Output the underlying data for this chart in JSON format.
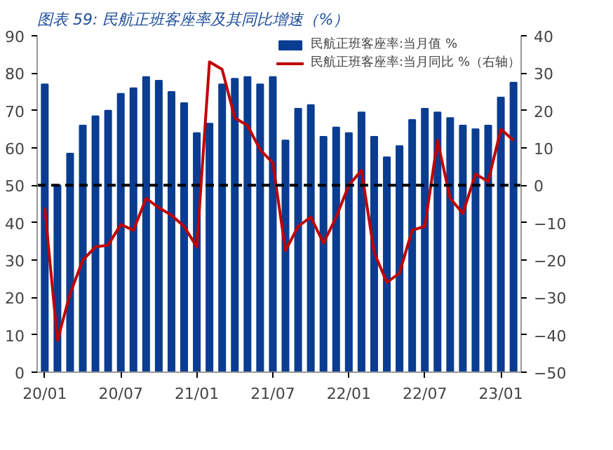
{
  "chart_data": {
    "type": "bar",
    "title": "图表 59: 民航正班客座率及其同比增速（%）",
    "categories": [
      "20/01",
      null,
      null,
      null,
      null,
      null,
      "20/07",
      null,
      null,
      null,
      null,
      null,
      "21/01",
      null,
      null,
      null,
      null,
      null,
      "21/07",
      null,
      null,
      null,
      null,
      null,
      "22/01",
      null,
      null,
      null,
      null,
      null,
      "22/07",
      null,
      null,
      null,
      null,
      null,
      "23/01",
      null
    ],
    "series": [
      {
        "name": "民航正班客座率:当月值 %",
        "color": "#0a3d91",
        "values": [
          77,
          50,
          58.5,
          66,
          68.5,
          70,
          74.5,
          76,
          79,
          78,
          75,
          72,
          64,
          66.5,
          77,
          78.5,
          79,
          77,
          79,
          62,
          70.5,
          71.5,
          63,
          65.5,
          64,
          69.5,
          63,
          57.5,
          60.5,
          67.5,
          70.5,
          69.5,
          68,
          66,
          65,
          66,
          73.5,
          77.5
        ]
      },
      {
        "name": "民航正班客座率:当月同比 %（右轴）",
        "color": "#c00000",
        "type": "line",
        "axis": "y2",
        "values": [
          -6,
          -41.5,
          -29,
          -20,
          -16.5,
          -16,
          -10.5,
          -12,
          -3.5,
          -6,
          -8,
          -11,
          -16.5,
          33,
          31,
          18,
          16,
          9.5,
          6,
          -17.5,
          -11,
          -8.5,
          -15.5,
          -8.5,
          0,
          4,
          -18,
          -26,
          -23.5,
          -12,
          -11,
          12,
          -3.5,
          -7.5,
          3,
          1,
          15,
          12
        ]
      }
    ],
    "ylim": [
      0,
      90
    ],
    "yticks": [
      0,
      10,
      20,
      30,
      40,
      50,
      60,
      70,
      80,
      90
    ],
    "y2lim": [
      -50,
      40
    ],
    "y2ticks": [
      -50,
      -40,
      -30,
      -20,
      -10,
      0,
      10,
      20,
      30,
      40
    ],
    "ref_lines": [
      {
        "axis": "y2",
        "value": 0,
        "color": "#000000",
        "line_style": "dashed"
      }
    ],
    "legend": "top",
    "grid": false
  }
}
